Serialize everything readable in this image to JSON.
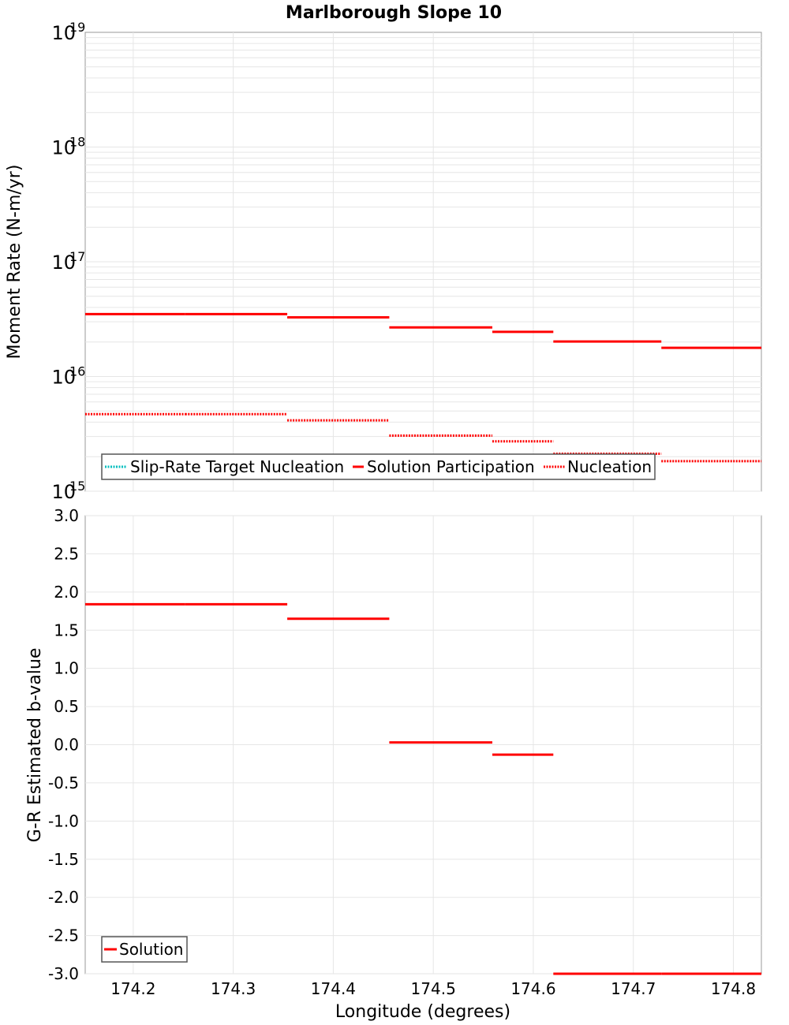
{
  "chart_data": [
    {
      "type": "line",
      "title": "Marlborough Slope 10",
      "xlabel": "Longitude (degrees)",
      "ylabel": "Moment Rate (N-m/yr)",
      "yscale": "log",
      "ylim": [
        1000000000000000.0,
        1e+19
      ],
      "xlim": [
        174.152,
        174.828
      ],
      "y_ticks": [
        {
          "base": "10",
          "exp": "15",
          "value": 1000000000000000.0
        },
        {
          "base": "10",
          "exp": "16",
          "value": 1e+16
        },
        {
          "base": "10",
          "exp": "17",
          "value": 1e+17
        },
        {
          "base": "10",
          "exp": "18",
          "value": 1e+18
        },
        {
          "base": "10",
          "exp": "19",
          "value": 1e+19
        }
      ],
      "legend": {
        "placement": "bottom-left",
        "items": [
          {
            "label": "Slip-Rate Target Nucleation",
            "style": "dotted",
            "color": "#00bfbf"
          },
          {
            "label": "Solution Participation",
            "style": "solid",
            "color": "#ff0000"
          },
          {
            "label": "Nucleation",
            "style": "dotted",
            "color": "#ff0000"
          }
        ]
      },
      "series": [
        {
          "name": "Solution Participation",
          "style": "solid",
          "color": "#ff0000",
          "segments": [
            {
              "x0": 174.152,
              "x1": 174.252,
              "y": 3.5e+16
            },
            {
              "x0": 174.252,
              "x1": 174.354,
              "y": 3.5e+16
            },
            {
              "x0": 174.354,
              "x1": 174.456,
              "y": 3.28e+16
            },
            {
              "x0": 174.456,
              "x1": 174.559,
              "y": 2.68e+16
            },
            {
              "x0": 174.559,
              "x1": 174.62,
              "y": 2.45e+16
            },
            {
              "x0": 174.62,
              "x1": 174.728,
              "y": 2.02e+16
            },
            {
              "x0": 174.728,
              "x1": 174.828,
              "y": 1.78e+16
            }
          ]
        },
        {
          "name": "Nucleation",
          "style": "dotted",
          "color": "#ff0000",
          "segments": [
            {
              "x0": 174.152,
              "x1": 174.252,
              "y": 4700000000000000.0
            },
            {
              "x0": 174.252,
              "x1": 174.354,
              "y": 4700000000000000.0
            },
            {
              "x0": 174.354,
              "x1": 174.456,
              "y": 4150000000000000.0
            },
            {
              "x0": 174.456,
              "x1": 174.559,
              "y": 3050000000000000.0
            },
            {
              "x0": 174.559,
              "x1": 174.62,
              "y": 2720000000000000.0
            },
            {
              "x0": 174.62,
              "x1": 174.728,
              "y": 2120000000000000.0
            },
            {
              "x0": 174.728,
              "x1": 174.828,
              "y": 1830000000000000.0
            }
          ]
        }
      ]
    },
    {
      "type": "line",
      "xlabel": "Longitude (degrees)",
      "ylabel": "G-R Estimated b-value",
      "ylim": [
        -3.0,
        3.0
      ],
      "xlim": [
        174.152,
        174.828
      ],
      "y_ticks": [
        "3.0",
        "2.5",
        "2.0",
        "1.5",
        "1.0",
        "0.5",
        "0.0",
        "-0.5",
        "-1.0",
        "-1.5",
        "-2.0",
        "-2.5",
        "-3.0"
      ],
      "x_ticks": [
        "174.2",
        "174.3",
        "174.4",
        "174.5",
        "174.6",
        "174.7",
        "174.8"
      ],
      "legend": {
        "placement": "bottom-left",
        "items": [
          {
            "label": "Solution",
            "style": "solid",
            "color": "#ff0000"
          }
        ]
      },
      "series": [
        {
          "name": "Solution",
          "style": "solid",
          "color": "#ff0000",
          "segments": [
            {
              "x0": 174.152,
              "x1": 174.252,
              "y": 1.84
            },
            {
              "x0": 174.252,
              "x1": 174.354,
              "y": 1.84
            },
            {
              "x0": 174.354,
              "x1": 174.456,
              "y": 1.65
            },
            {
              "x0": 174.456,
              "x1": 174.559,
              "y": 0.03
            },
            {
              "x0": 174.559,
              "x1": 174.62,
              "y": -0.13
            },
            {
              "x0": 174.62,
              "x1": 174.728,
              "y": -3.0
            },
            {
              "x0": 174.728,
              "x1": 174.828,
              "y": -3.0
            }
          ]
        }
      ]
    }
  ]
}
